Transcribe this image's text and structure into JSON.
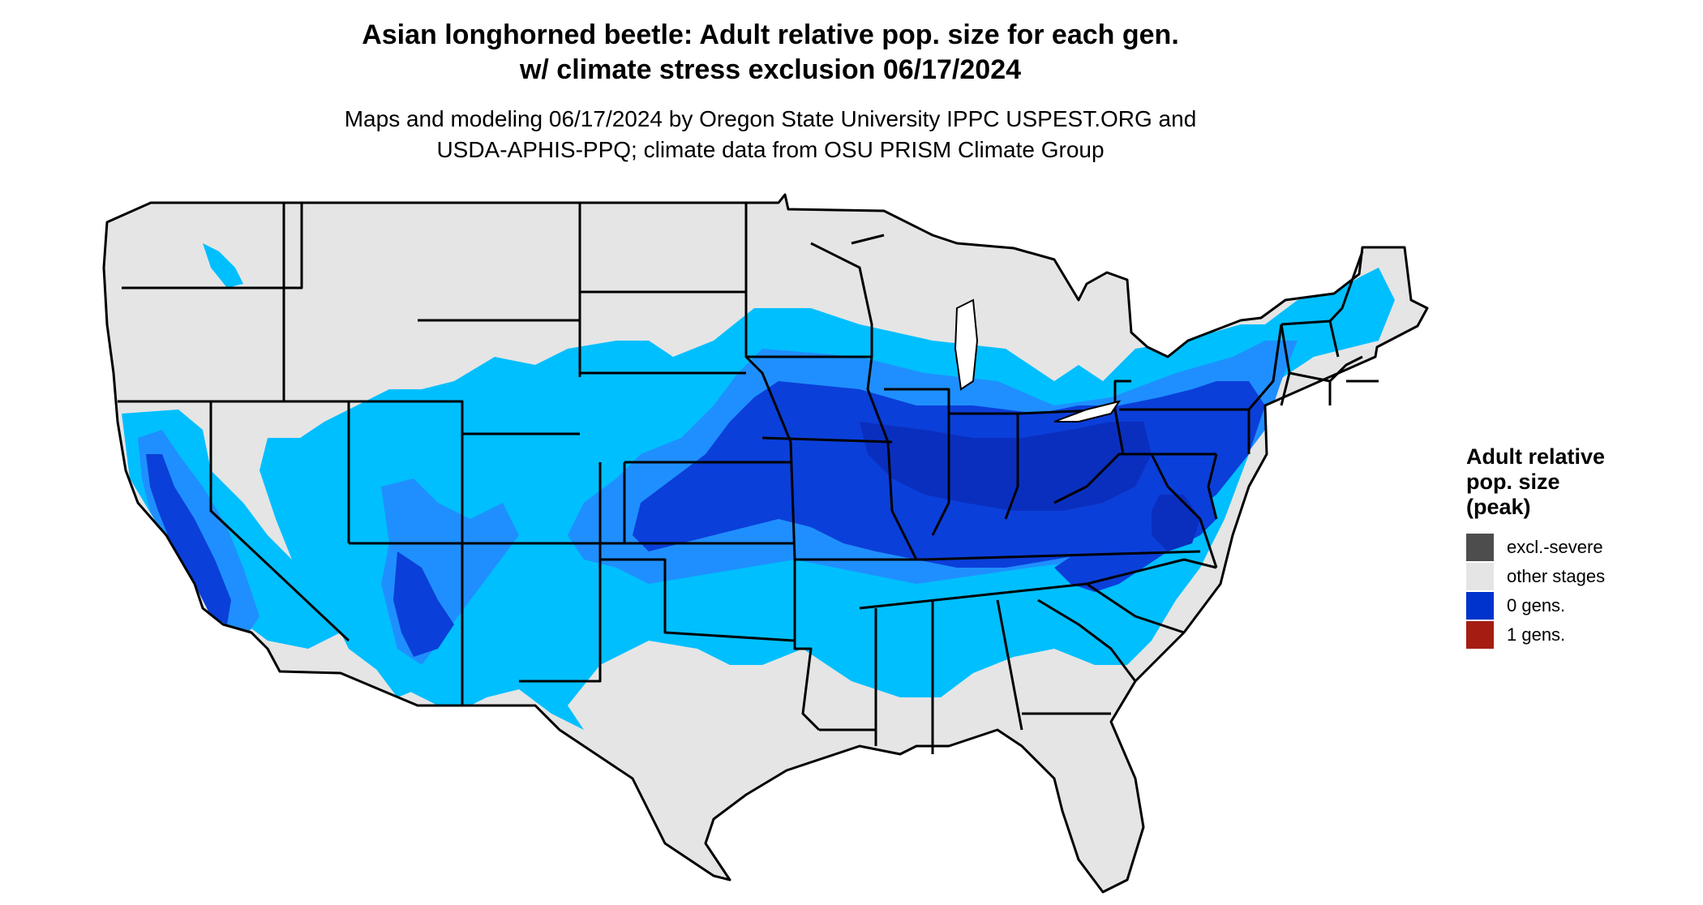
{
  "title": {
    "line1": "Asian longhorned beetle: Adult relative pop. size for each gen.",
    "line2": "w/ climate stress exclusion 06/17/2024"
  },
  "subtitle": {
    "line1": "Maps and modeling 06/17/2024 by Oregon State University IPPC USPEST.ORG and",
    "line2": "USDA-APHIS-PPQ; climate data from OSU PRISM Climate Group"
  },
  "legend": {
    "title_line1": "Adult relative",
    "title_line2": "pop. size",
    "title_line3": "(peak)",
    "items": [
      {
        "label": "excl.-severe",
        "color": "#4d4d4d"
      },
      {
        "label": "other stages",
        "color": "#e5e5e5"
      },
      {
        "label": "0 gens.",
        "color": "#0033cc"
      },
      {
        "label": "1 gens.",
        "color": "#a51d12"
      }
    ]
  },
  "map_colors": {
    "land": "#e5e5e5",
    "light_blue": "#00bfff",
    "mid_blue": "#1f8fff",
    "deep_blue": "#0b3fd9",
    "darkest_blue": "#0a2fbf",
    "border": "#000000"
  }
}
